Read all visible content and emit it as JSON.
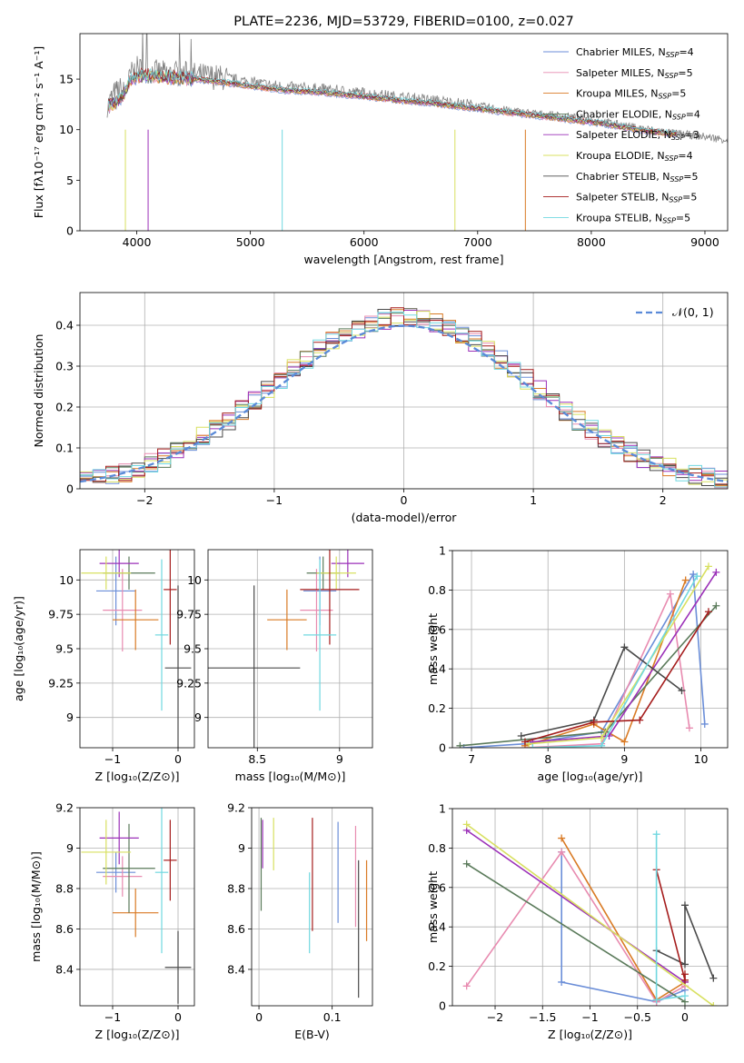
{
  "colors": [
    "#6b8ed8",
    "#e88bb0",
    "#d97a24",
    "#5a7a5a",
    "#9b30b8",
    "#d8e060",
    "#4a4a4a",
    "#a51c1c",
    "#70d8e0"
  ],
  "chart_data": [
    {
      "type": "line",
      "title": "PLATE=2236, MJD=53729, FIBERID=0100, z=0.027",
      "xlabel": "wavelength [Angstrom, rest frame]",
      "ylabel": "Flux [fλ10⁻¹⁷ erg cm⁻² s⁻¹ A⁻¹]",
      "xlim": [
        3500,
        9200
      ],
      "ylim": [
        0,
        19.5
      ],
      "xticks": [
        4000,
        5000,
        6000,
        7000,
        8000,
        9000
      ],
      "yticks": [
        0,
        5,
        10,
        15
      ],
      "legend_position": "top-right",
      "data_series": {
        "name": "",
        "color": "#808080",
        "x": [
          3750,
          3800,
          3850,
          3900,
          3950,
          4000,
          4100,
          4200,
          4300,
          4400,
          4500,
          4700,
          5000,
          5300,
          5600,
          6000,
          6300,
          6600,
          6900,
          7200,
          7500,
          7800,
          8100,
          8400,
          8700,
          9000,
          9200
        ],
        "y": [
          12.5,
          13.5,
          14.0,
          13.5,
          15.5,
          16.0,
          15.8,
          15.6,
          15.5,
          15.6,
          15.4,
          15.2,
          14.7,
          14.2,
          14.0,
          13.6,
          13.2,
          12.9,
          12.5,
          12.0,
          11.6,
          11.3,
          10.8,
          10.2,
          9.7,
          9.3,
          9.0
        ]
      },
      "series": [
        {
          "name": "Chabrier MILES, N_SSP=4"
        },
        {
          "name": "Salpeter MILES, N_SSP=5"
        },
        {
          "name": "Kroupa MILES, N_SSP=5"
        },
        {
          "name": "Chabrier ELODIE, N_SSP=4"
        },
        {
          "name": "Salpeter ELODIE, N_SSP=3"
        },
        {
          "name": "Kroupa ELODIE, N_SSP=4"
        },
        {
          "name": "Chabrier STELIB, N_SSP=5"
        },
        {
          "name": "Salpeter STELIB, N_SSP=5"
        },
        {
          "name": "Kroupa STELIB, N_SSP=5"
        }
      ],
      "model_x": [
        3750,
        3850,
        3950,
        4050,
        4200,
        4400,
        4600,
        4800,
        5000,
        5300,
        5600,
        6000,
        6300,
        6600,
        6900,
        7200,
        7500,
        7800,
        8100,
        8400,
        8700
      ],
      "model_y": [
        12.3,
        12.8,
        15.0,
        15.4,
        15.2,
        15.1,
        14.9,
        14.6,
        14.3,
        13.9,
        13.7,
        13.3,
        12.9,
        12.6,
        12.2,
        11.8,
        11.4,
        11.0,
        10.6,
        10.0,
        9.6
      ]
    },
    {
      "type": "line",
      "xlabel": "(data-model)/error",
      "ylabel": "Normed distribution",
      "xlim": [
        -2.5,
        2.5
      ],
      "ylim": [
        0,
        0.48
      ],
      "xticks": [
        -2,
        -1,
        0,
        1,
        2
      ],
      "yticks": [
        0.0,
        0.1,
        0.2,
        0.3,
        0.4
      ],
      "legend": "𝒩(0, 1)",
      "legend_position": "top-right"
    },
    {
      "type": "scatter",
      "xlabel": "Z [log₁₀(Z/Z⊙)]",
      "ylabel": "age  [log₁₀(age/yr)]",
      "xlim": [
        -1.5,
        0.25
      ],
      "ylim": [
        8.78,
        10.22
      ],
      "xticks": [
        -1,
        0
      ],
      "yticks": [
        9.0,
        9.25,
        9.5,
        9.75,
        10.0
      ],
      "points": [
        {
          "x": -0.95,
          "xerr": 0.3,
          "y": 9.92,
          "yerr": 0.25
        },
        {
          "x": -0.85,
          "xerr": 0.3,
          "y": 9.78,
          "yerr": 0.3
        },
        {
          "x": -0.65,
          "xerr": 0.35,
          "y": 9.71,
          "yerr": 0.22
        },
        {
          "x": -0.75,
          "xerr": 0.4,
          "y": 10.05,
          "yerr": 0.12
        },
        {
          "x": -0.9,
          "xerr": 0.3,
          "y": 10.12,
          "yerr": 0.1
        },
        {
          "x": -1.1,
          "xerr": 0.38,
          "y": 10.05,
          "yerr": 0.12
        },
        {
          "x": 0.0,
          "xerr": 0.2,
          "y": 9.36,
          "yerr": 0.6
        },
        {
          "x": -0.12,
          "xerr": 0.1,
          "y": 9.93,
          "yerr": 0.4
        },
        {
          "x": -0.25,
          "xerr": 0.1,
          "y": 9.6,
          "yerr": 0.55
        }
      ]
    },
    {
      "type": "scatter",
      "xlabel": "mass [log₁₀(M/M⊙)]",
      "ylabel": "",
      "xlim": [
        8.2,
        9.2
      ],
      "ylim": [
        8.78,
        10.22
      ],
      "xticks": [
        8.5,
        9.0
      ],
      "yticks": [
        9.0,
        9.25,
        9.5,
        9.75,
        10.0
      ],
      "points": [
        {
          "x": 8.88,
          "xerr": 0.1,
          "y": 9.92,
          "yerr": 0.25
        },
        {
          "x": 8.86,
          "xerr": 0.1,
          "y": 9.78,
          "yerr": 0.3
        },
        {
          "x": 8.68,
          "xerr": 0.12,
          "y": 9.71,
          "yerr": 0.22
        },
        {
          "x": 8.9,
          "xerr": 0.1,
          "y": 10.05,
          "yerr": 0.12
        },
        {
          "x": 9.05,
          "xerr": 0.1,
          "y": 10.12,
          "yerr": 0.1
        },
        {
          "x": 8.98,
          "xerr": 0.12,
          "y": 10.05,
          "yerr": 0.12
        },
        {
          "x": 8.48,
          "xerr": 0.28,
          "y": 9.36,
          "yerr": 0.6
        },
        {
          "x": 8.94,
          "xerr": 0.18,
          "y": 9.93,
          "yerr": 0.4
        },
        {
          "x": 8.88,
          "xerr": 0.1,
          "y": 9.6,
          "yerr": 0.55
        }
      ]
    },
    {
      "type": "line",
      "xlabel": "age  [log₁₀(age/yr)]",
      "ylabel": "mass weight",
      "xlim": [
        6.75,
        10.35
      ],
      "ylim": [
        0,
        1.0
      ],
      "xticks": [
        7,
        8,
        9,
        10
      ],
      "yticks": [
        0.0,
        0.2,
        0.4,
        0.6,
        0.8,
        1.0
      ],
      "series": [
        {
          "x": [
            6.9,
            7.7,
            8.7,
            9.9,
            10.05
          ],
          "y": [
            0.0,
            0.02,
            0.08,
            0.88,
            0.12
          ]
        },
        {
          "x": [
            7.7,
            8.7,
            9.6,
            9.85
          ],
          "y": [
            0.0,
            0.02,
            0.78,
            0.1
          ]
        },
        {
          "x": [
            7.7,
            8.6,
            9.0,
            9.8
          ],
          "y": [
            0.01,
            0.12,
            0.03,
            0.85
          ]
        },
        {
          "x": [
            6.85,
            8.75,
            10.2
          ],
          "y": [
            0.01,
            0.08,
            0.72
          ]
        },
        {
          "x": [
            7.8,
            8.8,
            10.2
          ],
          "y": [
            0.03,
            0.06,
            0.89
          ]
        },
        {
          "x": [
            7.75,
            8.7,
            10.1
          ],
          "y": [
            0.02,
            0.05,
            0.92
          ]
        },
        {
          "x": [
            7.65,
            8.6,
            9.0,
            9.75
          ],
          "y": [
            0.06,
            0.14,
            0.51,
            0.29
          ]
        },
        {
          "x": [
            7.7,
            8.6,
            9.2,
            10.1
          ],
          "y": [
            0.03,
            0.13,
            0.14,
            0.69
          ]
        },
        {
          "x": [
            7.8,
            8.7,
            9.95
          ],
          "y": [
            0.0,
            0.01,
            0.87
          ]
        }
      ]
    },
    {
      "type": "scatter",
      "xlabel": "Z [log₁₀(Z/Z⊙)]",
      "ylabel": "mass [log₁₀(M/M⊙)]",
      "xlim": [
        -1.5,
        0.25
      ],
      "ylim": [
        8.22,
        9.2
      ],
      "xticks": [
        -1,
        0
      ],
      "yticks": [
        8.4,
        8.6,
        8.8,
        9.0,
        9.2
      ],
      "points": [
        {
          "x": -0.95,
          "xerr": 0.3,
          "y": 8.88,
          "yerr": 0.1
        },
        {
          "x": -0.85,
          "xerr": 0.3,
          "y": 8.86,
          "yerr": 0.1
        },
        {
          "x": -0.65,
          "xerr": 0.35,
          "y": 8.68,
          "yerr": 0.12
        },
        {
          "x": -0.75,
          "xerr": 0.4,
          "y": 8.9,
          "yerr": 0.22
        },
        {
          "x": -0.9,
          "xerr": 0.3,
          "y": 9.05,
          "yerr": 0.13
        },
        {
          "x": -1.1,
          "xerr": 0.38,
          "y": 8.98,
          "yerr": 0.16
        },
        {
          "x": 0.0,
          "xerr": 0.2,
          "y": 8.41,
          "yerr": 0.18
        },
        {
          "x": -0.12,
          "xerr": 0.1,
          "y": 8.94,
          "yerr": 0.2
        },
        {
          "x": -0.25,
          "xerr": 0.1,
          "y": 8.88,
          "yerr": 0.4
        }
      ]
    },
    {
      "type": "scatter",
      "xlabel": "E(B-V)",
      "ylabel": "",
      "xlim": [
        -0.01,
        0.155
      ],
      "ylim": [
        8.22,
        9.2
      ],
      "xticks": [
        0.0,
        0.1
      ],
      "yticks": [
        8.4,
        8.6,
        8.8,
        9.0,
        9.2
      ],
      "points": [
        {
          "x": 0.108,
          "y": 8.88,
          "yerr": 0.25
        },
        {
          "x": 0.132,
          "y": 8.86,
          "yerr": 0.25
        },
        {
          "x": 0.147,
          "y": 8.74,
          "yerr": 0.2
        },
        {
          "x": 0.003,
          "y": 8.92,
          "yerr": 0.23
        },
        {
          "x": 0.005,
          "y": 9.02,
          "yerr": 0.12
        },
        {
          "x": 0.02,
          "y": 9.02,
          "yerr": 0.13
        },
        {
          "x": 0.136,
          "y": 8.6,
          "yerr": 0.34
        },
        {
          "x": 0.073,
          "y": 8.87,
          "yerr": 0.28
        },
        {
          "x": 0.069,
          "y": 8.68,
          "yerr": 0.2
        }
      ]
    },
    {
      "type": "line",
      "xlabel": "Z [log₁₀(Z/Z⊙)]",
      "ylabel": "mass weight",
      "xlim": [
        -2.45,
        0.45
      ],
      "ylim": [
        0,
        1.0
      ],
      "xticks": [
        -2.0,
        -1.5,
        -1.0,
        -0.5,
        0.0
      ],
      "yticks": [
        0.0,
        0.2,
        0.4,
        0.6,
        0.8,
        1.0
      ],
      "series": [
        {
          "x": [
            -1.3,
            -1.3,
            -0.3,
            0.0
          ],
          "y": [
            0.78,
            0.12,
            0.02,
            0.08
          ]
        },
        {
          "x": [
            -2.3,
            -1.3,
            -0.3,
            0.0
          ],
          "y": [
            0.1,
            0.78,
            0.02,
            0.1
          ]
        },
        {
          "x": [
            -1.3,
            -0.3,
            0.0
          ],
          "y": [
            0.85,
            0.03,
            0.12
          ]
        },
        {
          "x": [
            -2.3,
            0.0
          ],
          "y": [
            0.72,
            0.02
          ]
        },
        {
          "x": [
            -2.3,
            0.0
          ],
          "y": [
            0.89,
            0.12
          ]
        },
        {
          "x": [
            -2.3,
            0.3
          ],
          "y": [
            0.92,
            0.0
          ]
        },
        {
          "x": [
            -0.3,
            0.0,
            0.0,
            0.3
          ],
          "y": [
            0.28,
            0.21,
            0.51,
            0.14
          ]
        },
        {
          "x": [
            -0.3,
            0.0,
            0.0
          ],
          "y": [
            0.69,
            0.13,
            0.16
          ]
        },
        {
          "x": [
            -0.3,
            -0.3,
            0.0
          ],
          "y": [
            0.87,
            0.03,
            0.05
          ]
        }
      ]
    }
  ]
}
